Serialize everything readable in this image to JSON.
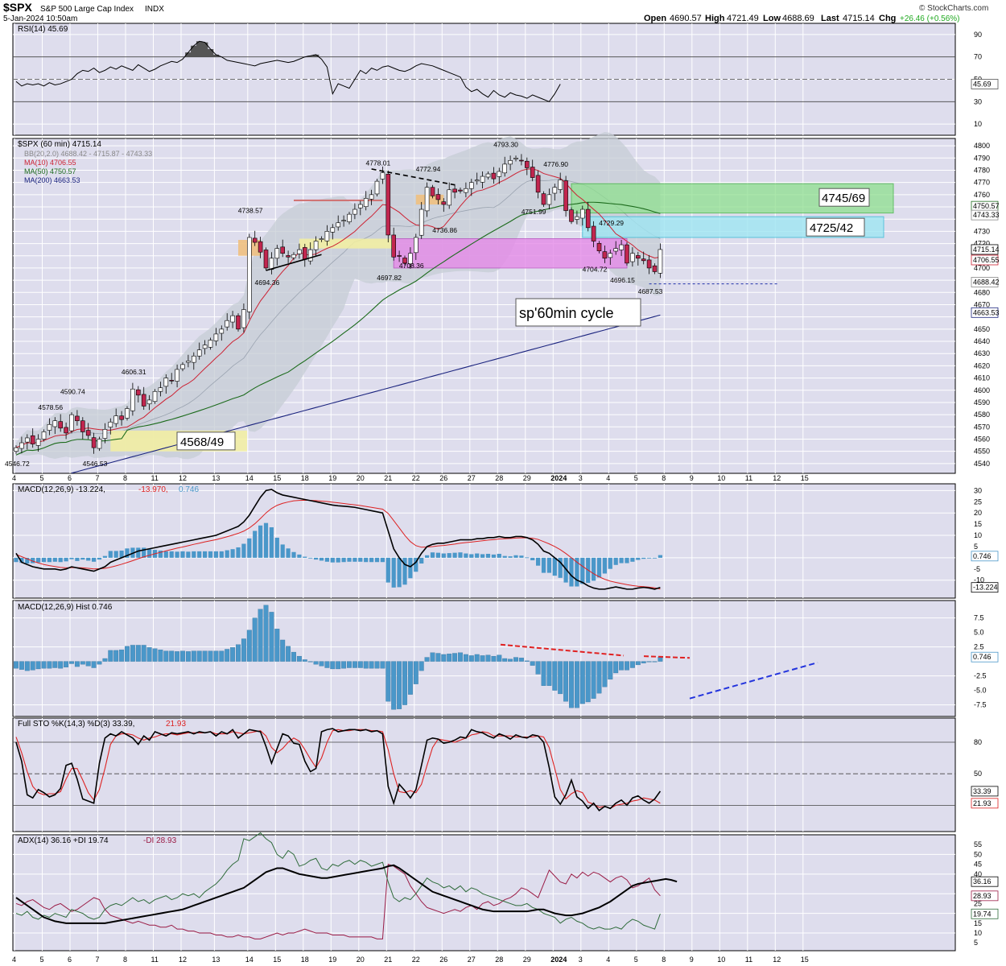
{
  "header": {
    "symbol": "$SPX",
    "name": "S&P 500 Large Cap Index",
    "exchange": "INDX",
    "datetime": "5-Jan-2024 10:50am",
    "open_label": "Open",
    "open": "4690.57",
    "high_label": "High",
    "high": "4721.49",
    "low_label": "Low",
    "low": "4688.69",
    "last_label": "Last",
    "last": "4715.14",
    "chg_label": "Chg",
    "chg": "+26.46 (+0.56%)",
    "brand": "© StockCharts.com",
    "chg_color": "#22aa22"
  },
  "x_labels": [
    "4",
    "5",
    "6",
    "7",
    "8",
    "11",
    "12",
    "13",
    "14",
    "15",
    "18",
    "19",
    "20",
    "21",
    "22",
    "26",
    "27",
    "28",
    "29",
    "2024",
    "3",
    "4",
    "5",
    "8",
    "9",
    "10",
    "11",
    "12",
    "15"
  ],
  "rsi": {
    "legend": "RSI(14) 45.69",
    "last": "45.69",
    "ticks": [
      "90",
      "70",
      "50",
      "30",
      "10"
    ],
    "overbought": 70,
    "oversold": 30,
    "values": [
      48,
      44,
      46,
      45,
      46,
      44,
      47,
      45,
      46,
      48,
      50,
      55,
      58,
      57,
      60,
      56,
      58,
      61,
      59,
      62,
      60,
      58,
      63,
      60,
      57,
      59,
      62,
      64,
      66,
      65,
      68,
      74,
      80,
      84,
      83,
      77,
      72,
      70,
      67,
      66,
      65,
      64,
      63,
      62,
      64,
      65,
      66,
      67,
      66,
      65,
      66,
      68,
      70,
      71,
      72,
      68,
      61,
      37,
      46,
      44,
      42,
      50,
      58,
      55,
      60,
      58,
      61,
      62,
      60,
      58,
      57,
      59,
      62,
      64,
      63,
      62,
      60,
      58,
      56,
      54,
      52,
      43,
      39,
      41,
      37,
      34,
      40,
      36,
      34,
      38,
      36,
      35,
      33,
      36,
      34,
      32,
      30,
      37,
      45.69
    ]
  },
  "price": {
    "legend_title": "$SPX (60 min) 4715.14",
    "legend_bb": "BB(20,2.0) 4688.42 - 4715.87 - 4743.33",
    "legend_ma10": "MA(10) 4706.55",
    "legend_ma50": "MA(50) 4750.57",
    "legend_ma200": "MA(200) 4663.53",
    "ticks": [
      "4800",
      "4790",
      "4780",
      "4770",
      "4760",
      "4750",
      "4740",
      "4730",
      "4720",
      "4710",
      "4700",
      "4690",
      "4680",
      "4670",
      "4660",
      "4650",
      "4640",
      "4630",
      "4620",
      "4610",
      "4600",
      "4590",
      "4580",
      "4570",
      "4560",
      "4550",
      "4540"
    ],
    "tags": {
      "ma50": "4750.57",
      "bbu": "4743.33",
      "last": "4715.14",
      "ma10": "4706.55",
      "bbl": "4688.42",
      "ma200": "4663.53"
    },
    "colors": {
      "ma10": "#cc2233",
      "ma50": "#1c6b1c",
      "ma200": "#1a237e",
      "bb": "#9aa3b0",
      "up": "#ffffff",
      "down": "#c1264f"
    },
    "annotations": [
      {
        "text": "4546.72",
        "i": 0,
        "p": 4538
      },
      {
        "text": "4578.56",
        "i": 6,
        "p": 4584
      },
      {
        "text": "4590.74",
        "i": 10,
        "p": 4597
      },
      {
        "text": "4546.53",
        "i": 14,
        "p": 4538
      },
      {
        "text": "4606.31",
        "i": 21,
        "p": 4613
      },
      {
        "text": "4738.57",
        "i": 42,
        "p": 4745
      },
      {
        "text": "4694.36",
        "i": 45,
        "p": 4686
      },
      {
        "text": "4778.01",
        "i": 65,
        "p": 4784
      },
      {
        "text": "4697.82",
        "i": 67,
        "p": 4690
      },
      {
        "text": "4708.36",
        "i": 71,
        "p": 4700
      },
      {
        "text": "4772.94",
        "i": 74,
        "p": 4779
      },
      {
        "text": "4736.86",
        "i": 77,
        "p": 4729
      },
      {
        "text": "4793.30",
        "i": 88,
        "p": 4799
      },
      {
        "text": "4776.90",
        "i": 97,
        "p": 4783
      },
      {
        "text": "4751.99",
        "i": 93,
        "p": 4744
      },
      {
        "text": "4729.29",
        "i": 107,
        "p": 4735
      },
      {
        "text": "4704.72",
        "i": 104,
        "p": 4697
      },
      {
        "text": "4696.15",
        "i": 109,
        "p": 4688
      },
      {
        "text": "4687.53",
        "i": 114,
        "p": 4679
      }
    ],
    "zone_labels": {
      "green": "4745/69",
      "cyan": "4725/42",
      "yellow": "4568/49"
    },
    "cycle_label": "sp'60min cycle",
    "close": [
      4553,
      4557,
      4561,
      4556,
      4560,
      4566,
      4572,
      4575,
      4569,
      4565,
      4580,
      4575,
      4566,
      4563,
      4553,
      4560,
      4568,
      4574,
      4579,
      4576,
      4585,
      4601,
      4596,
      4587,
      4592,
      4599,
      4602,
      4610,
      4608,
      4617,
      4621,
      4624,
      4628,
      4633,
      4637,
      4641,
      4646,
      4650,
      4657,
      4661,
      4650,
      4666,
      4725,
      4721,
      4713,
      4700,
      4708,
      4716,
      4712,
      4709,
      4711,
      4715,
      4707,
      4715,
      4722,
      4724,
      4730,
      4733,
      4737,
      4739,
      4744,
      4748,
      4752,
      4757,
      4760,
      4771,
      4778,
      4727,
      4709,
      4710,
      4704,
      4712,
      4725,
      4748,
      4766,
      4759,
      4756,
      4752,
      4764,
      4762,
      4763,
      4765,
      4770,
      4772,
      4775,
      4777,
      4773,
      4779,
      4785,
      4788,
      4790,
      4788,
      4782,
      4774,
      4762,
      4752,
      4760,
      4766,
      4772,
      4747,
      4738,
      4742,
      4748,
      4733,
      4722,
      4714,
      4708,
      4712,
      4716,
      4719,
      4704,
      4712,
      4708,
      4706,
      4700,
      4697,
      4715.14
    ]
  },
  "macd": {
    "legend_label": "MACD(12,26,9) -13.224,",
    "legend_signal": "-13.970,",
    "legend_hist": "0.746",
    "ticks": [
      "30",
      "25",
      "20",
      "15",
      "10",
      "5",
      "0",
      "-5",
      "-10",
      "-15"
    ],
    "tags": {
      "hist": "0.746",
      "macd": "-13.224"
    },
    "line": [
      2,
      -2,
      -3,
      -4,
      -4.5,
      -5,
      -5,
      -5,
      -5.5,
      -5,
      -4,
      -4.5,
      -5,
      -5.5,
      -6,
      -5,
      -4,
      -2,
      -1,
      0,
      1,
      2,
      3,
      3.5,
      4,
      4.5,
      5,
      5.5,
      6,
      6.5,
      7,
      7.5,
      8,
      8.5,
      9,
      9.5,
      10,
      11,
      12,
      13,
      14,
      16,
      19,
      23,
      27,
      30,
      30.5,
      29,
      28,
      27.5,
      27,
      26.5,
      26,
      25.5,
      25,
      24.5,
      24,
      23.5,
      23.2,
      23,
      22.8,
      22.5,
      22,
      21.5,
      21,
      20.5,
      20,
      12,
      4,
      0,
      -3,
      -4,
      -2,
      2,
      5,
      6,
      6.5,
      6.5,
      7,
      7.5,
      8,
      8,
      8,
      8.5,
      8.5,
      9,
      9,
      9.5,
      9,
      9,
      9.5,
      9.5,
      9,
      8,
      6,
      3,
      2,
      0,
      -2,
      -5,
      -8,
      -10,
      -11,
      -12.5,
      -13.5,
      -14,
      -14,
      -13.5,
      -13,
      -13.5,
      -14,
      -14,
      -13.5,
      -13.2,
      -13.5,
      -14,
      -13.224
    ],
    "signal": [
      1.5,
      0.5,
      -0.5,
      -1.5,
      -2.3,
      -3,
      -3.5,
      -3.9,
      -4.3,
      -4.5,
      -4.4,
      -4.4,
      -4.5,
      -4.7,
      -5,
      -4.9,
      -4.7,
      -4.2,
      -3.6,
      -2.9,
      -2.1,
      -1.3,
      -0.4,
      0.4,
      1.1,
      1.8,
      2.4,
      3.1,
      3.7,
      4.3,
      4.8,
      5.4,
      6,
      6.5,
      7.1,
      7.6,
      8.1,
      8.7,
      9.4,
      10.1,
      10.9,
      11.9,
      13.3,
      15.2,
      17.5,
      20,
      22,
      23.4,
      24.3,
      24.9,
      25.4,
      25.6,
      25.7,
      25.6,
      25.5,
      25.3,
      25.1,
      24.8,
      24.5,
      24.2,
      23.9,
      23.6,
      23.3,
      22.9,
      22.5,
      22.1,
      21.7,
      19.8,
      16.6,
      13.3,
      10,
      7.2,
      5.4,
      4.7,
      4.8,
      5,
      5.3,
      5.5,
      5.8,
      6.1,
      6.5,
      6.8,
      7,
      7.3,
      7.6,
      7.9,
      8.1,
      8.4,
      8.5,
      8.6,
      8.8,
      8.9,
      8.9,
      8.7,
      8.2,
      7.2,
      6.2,
      5,
      3.6,
      1.9,
      0,
      -2,
      -3.8,
      -5.5,
      -7.1,
      -8.5,
      -9.6,
      -10.4,
      -11,
      -11.5,
      -12,
      -12.4,
      -12.7,
      -12.9,
      -13.1,
      -13.4,
      -13.97
    ]
  },
  "hist": {
    "legend": "MACD(12,26,9) Hist 0.746",
    "ticks": [
      "7.5",
      "5.0",
      "2.5",
      "0.0",
      "-2.5",
      "-5.0",
      "-7.5"
    ],
    "tag": "0.746",
    "values": [
      -1.2,
      -1.4,
      -1.6,
      -1.5,
      -1.3,
      -1.2,
      -1.2,
      -1.1,
      -1.2,
      -1,
      -0.4,
      -0.9,
      -0.5,
      -0.8,
      -1.1,
      -0.5,
      0.5,
      1.9,
      1.9,
      2,
      2.6,
      2.8,
      2.8,
      2.8,
      2.4,
      2.2,
      2,
      1.8,
      1.8,
      1.7,
      1.8,
      1.7,
      1.8,
      1.8,
      1.8,
      1.8,
      1.8,
      1.8,
      2.1,
      2.4,
      2.9,
      3.9,
      5.4,
      7.5,
      9,
      9.7,
      8.5,
      5.6,
      3.7,
      2.6,
      1.6,
      0.9,
      0.3,
      -0.1,
      -0.5,
      -0.8,
      -1.1,
      -1.3,
      -1.3,
      -1.2,
      -1.1,
      -1.1,
      -1.1,
      -1.2,
      -1.2,
      -1.2,
      -1.2,
      -6.9,
      -8.3,
      -8.2,
      -7.5,
      -5.7,
      -3.9,
      -1.6,
      0.7,
      1.5,
      1.4,
      1.2,
      1.3,
      1.4,
      1.5,
      1.2,
      1,
      1.2,
      1,
      1.1,
      0.9,
      1.1,
      0.5,
      0.4,
      0.7,
      0.6,
      0.1,
      -0.7,
      -2.2,
      -4.2,
      -4.2,
      -5,
      -5.6,
      -6.9,
      -8,
      -8,
      -7.3,
      -7,
      -6.4,
      -5.5,
      -4.4,
      -3.1,
      -2,
      -1.5,
      -1.5,
      -1.1,
      -0.6,
      -0.3,
      -0.1,
      -0.1,
      0.746
    ]
  },
  "sto": {
    "legend_label": "Full STO %K(14,3) %D(3) 33.39,",
    "legend_d": "21.93",
    "ticks": [
      "80",
      "50"
    ],
    "tags": {
      "k": "33.39",
      "d": "21.93"
    },
    "k": [
      80,
      62,
      30,
      27,
      35,
      32,
      28,
      30,
      36,
      58,
      60,
      45,
      26,
      24,
      22,
      60,
      84,
      88,
      86,
      90,
      87,
      84,
      78,
      86,
      82,
      90,
      88,
      86,
      89,
      88,
      89,
      90,
      88,
      90,
      89,
      90,
      86,
      90,
      88,
      92,
      84,
      88,
      92,
      91,
      90,
      76,
      60,
      74,
      88,
      86,
      79,
      78,
      62,
      52,
      55,
      90,
      92,
      93,
      90,
      91,
      92,
      92,
      91,
      92,
      90,
      91,
      88,
      38,
      22,
      40,
      34,
      27,
      35,
      58,
      82,
      84,
      83,
      79,
      80,
      82,
      85,
      84,
      92,
      90,
      89,
      86,
      84,
      88,
      86,
      83,
      87,
      85,
      84,
      87,
      86,
      80,
      56,
      28,
      21,
      30,
      44,
      28,
      24,
      17,
      22,
      15,
      19,
      17,
      22,
      25,
      20,
      27,
      29,
      25,
      22,
      26,
      33.39
    ],
    "d": [
      85,
      70,
      52,
      38,
      32,
      30,
      31,
      31,
      33,
      45,
      55,
      55,
      44,
      32,
      25,
      35,
      55,
      78,
      86,
      88,
      88,
      87,
      84,
      82,
      84,
      85,
      87,
      88,
      88,
      87,
      88,
      89,
      89,
      89,
      89,
      90,
      88,
      88,
      88,
      90,
      89,
      88,
      89,
      90,
      91,
      86,
      75,
      70,
      74,
      80,
      84,
      81,
      73,
      64,
      56,
      65,
      80,
      91,
      92,
      91,
      91,
      92,
      92,
      92,
      91,
      91,
      90,
      73,
      50,
      33,
      32,
      34,
      32,
      40,
      58,
      75,
      83,
      82,
      81,
      80,
      82,
      84,
      87,
      88,
      90,
      89,
      86,
      86,
      86,
      86,
      85,
      85,
      85,
      85,
      86,
      85,
      75,
      55,
      35,
      26,
      31,
      34,
      32,
      23,
      21,
      18,
      19,
      17,
      20,
      21,
      22,
      24,
      25,
      27,
      26,
      25,
      21.93
    ]
  },
  "adx": {
    "legend_label": "ADX(14) 36.16 +DI 19.74",
    "legend_mdi": "-DI 28.93",
    "ticks": [
      "55",
      "50",
      "45",
      "40",
      "35",
      "30",
      "25",
      "20",
      "15",
      "10",
      "5"
    ],
    "tags": {
      "adx": "36.16",
      "mdi": "28.93",
      "pdi": "19.74"
    },
    "adx_line": [
      28,
      26,
      24,
      22,
      20,
      18,
      17,
      16,
      15.5,
      15,
      15,
      15,
      15,
      15,
      15,
      15,
      15,
      15.5,
      16,
      16.5,
      17,
      17.5,
      18,
      18.5,
      19,
      19.5,
      20,
      20.5,
      21,
      21.5,
      22,
      23,
      24,
      25,
      26,
      27,
      28,
      29,
      30,
      31,
      32,
      33,
      35,
      37,
      39,
      41,
      42,
      43,
      43,
      42,
      41,
      40,
      39.5,
      39,
      38.5,
      38,
      38,
      38.5,
      39,
      39.5,
      40,
      40.5,
      41,
      41.5,
      42,
      42.5,
      43,
      44,
      44.5,
      43,
      41,
      39,
      37,
      35,
      33,
      31,
      30,
      29,
      28,
      27,
      26,
      25,
      24,
      23,
      22,
      21.5,
      21,
      21,
      21,
      21,
      21,
      21,
      21,
      21.5,
      22,
      22,
      21,
      20,
      19.5,
      19,
      19,
      19.5,
      20,
      21,
      22,
      23,
      24.5,
      26,
      28,
      30,
      32,
      34,
      35,
      35.5,
      36,
      36.5,
      37,
      37.5,
      37,
      36.16
    ],
    "pdi": [
      20,
      19,
      21,
      18,
      17,
      19,
      18,
      20,
      19,
      18,
      22,
      21,
      20,
      18,
      17,
      18,
      22,
      24,
      25,
      24,
      26,
      28,
      26,
      27,
      25,
      27,
      28,
      29,
      27,
      28,
      30,
      29,
      30,
      28,
      31,
      33,
      35,
      38,
      42,
      45,
      47,
      58,
      57,
      59,
      61,
      58,
      56,
      50,
      48,
      52,
      50,
      44,
      45,
      47,
      48,
      43,
      42,
      45,
      44,
      46,
      47,
      45,
      47,
      46,
      44,
      45,
      46,
      36,
      28,
      26,
      28,
      27,
      30,
      34,
      38,
      36,
      35,
      33,
      34,
      32,
      34,
      31,
      33,
      32,
      30,
      29,
      28,
      27,
      26,
      25,
      24,
      24,
      25,
      23,
      22,
      20,
      19,
      18,
      15,
      17,
      18,
      16,
      15,
      13,
      12,
      13,
      12,
      12,
      13,
      12,
      15,
      17,
      16,
      14,
      13,
      12,
      19.74
    ],
    "mdi": [
      25,
      24,
      26,
      27,
      25,
      23,
      22,
      24,
      25,
      23,
      21,
      22,
      24,
      26,
      28,
      27,
      22,
      19,
      18,
      17,
      16,
      15,
      16,
      15,
      14,
      14,
      13,
      13,
      14,
      12,
      12,
      11,
      11,
      10,
      10,
      10,
      9,
      9,
      8,
      8,
      9,
      8,
      8,
      7,
      7,
      8,
      9,
      10,
      9,
      10,
      10,
      11,
      12,
      11,
      10,
      10,
      10,
      9,
      9,
      9,
      8,
      8,
      8,
      8,
      8,
      7,
      7,
      45,
      44,
      42,
      40,
      34,
      30,
      26,
      23,
      22,
      21,
      20,
      21,
      22,
      21,
      23,
      24,
      22,
      25,
      26,
      24,
      25,
      27,
      28,
      30,
      33,
      32,
      30,
      28,
      35,
      42,
      39,
      36,
      35,
      40,
      38,
      41,
      39,
      41,
      40,
      38,
      36,
      38,
      39,
      37,
      33,
      34,
      36,
      38,
      32,
      28.93
    ]
  }
}
